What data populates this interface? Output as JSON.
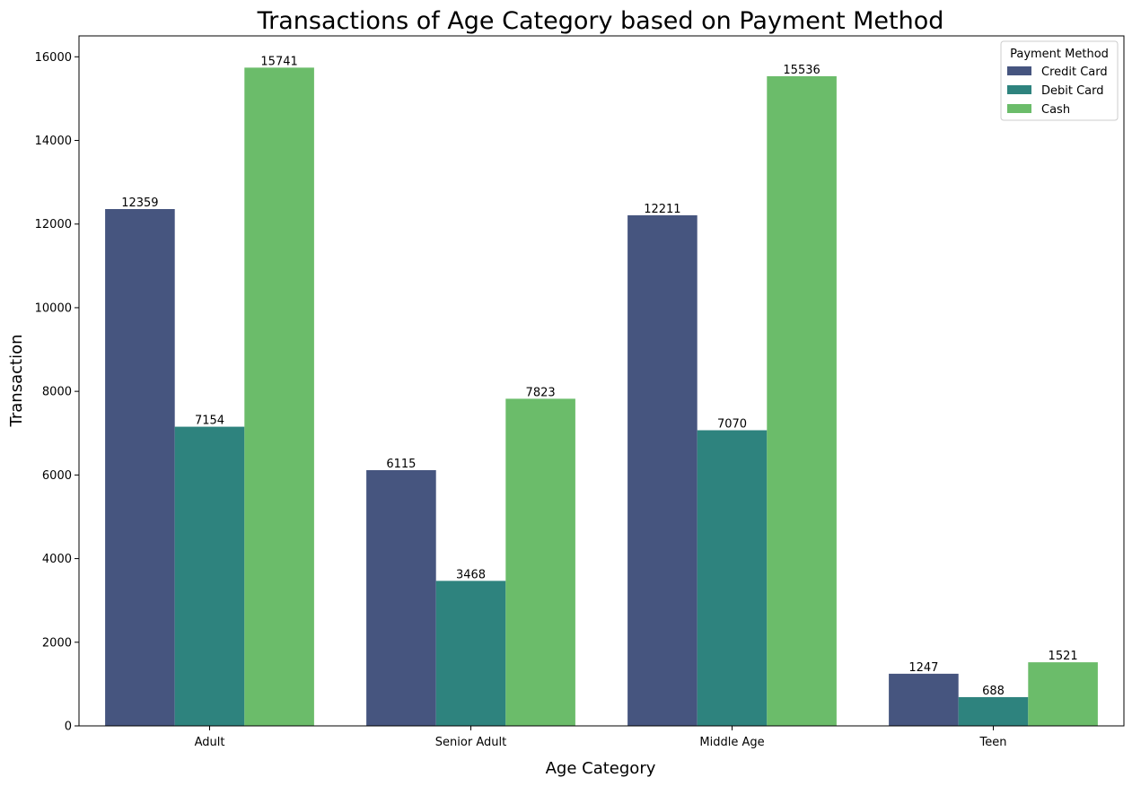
{
  "chart_data": {
    "type": "bar",
    "title": "Transactions of Age Category based on Payment Method",
    "xlabel": "Age Category",
    "ylabel": "Transaction",
    "categories": [
      "Adult",
      "Senior Adult",
      "Middle Age",
      "Teen"
    ],
    "series": [
      {
        "name": "Credit Card",
        "values": [
          12359,
          6115,
          12211,
          1247
        ],
        "color": "#46557f"
      },
      {
        "name": "Debit Card",
        "values": [
          7154,
          3468,
          7070,
          688
        ],
        "color": "#2e837e"
      },
      {
        "name": "Cash",
        "values": [
          15741,
          7823,
          15536,
          1521
        ],
        "color": "#6bbc6a"
      }
    ],
    "ylim": [
      0,
      16500
    ],
    "yticks": [
      0,
      2000,
      4000,
      6000,
      8000,
      10000,
      12000,
      14000,
      16000
    ],
    "legend_title": "Payment Method",
    "legend_position": "top-right",
    "grid": false,
    "show_data_labels": true
  }
}
